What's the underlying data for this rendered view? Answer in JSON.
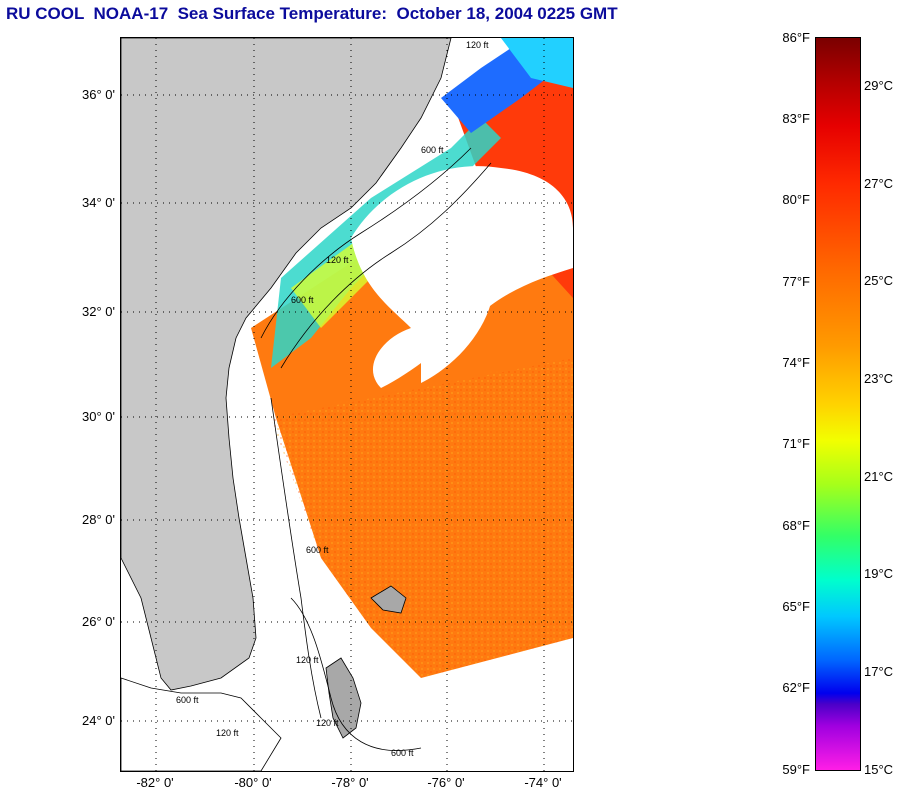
{
  "title": "RU COOL  NOAA-17  Sea Surface Temperature:  October 18, 2004 0225 GMT",
  "latitude_labels": [
    "36° 0'",
    "34° 0'",
    "32° 0'",
    "30° 0'",
    "28° 0'",
    "26° 0'",
    "24° 0'"
  ],
  "longitude_labels": [
    "-82° 0'",
    "-80° 0'",
    "-78° 0'",
    "-76° 0'",
    "-74° 0'"
  ],
  "colorbar": {
    "fahrenheit_labels": [
      "86°F",
      "83°F",
      "80°F",
      "77°F",
      "74°F",
      "71°F",
      "68°F",
      "65°F",
      "62°F",
      "59°F"
    ],
    "celsius_labels": [
      "29°C",
      "27°C",
      "25°C",
      "23°C",
      "21°C",
      "19°C",
      "17°C",
      "15°C"
    ],
    "colors": [
      "#7a0000",
      "#e60000",
      "#ff6a00",
      "#ffd200",
      "#f2ff00",
      "#33ff66",
      "#00ffcc",
      "#0066ff",
      "#0000ee",
      "#a000e0",
      "#ff1ee6"
    ]
  },
  "bathymetry_labels": [
    "120 ft",
    "600 ft",
    "120 ft",
    "600 ft",
    "600 ft",
    "120 ft",
    "600 ft",
    "120 ft",
    "600 ft",
    "120 ft"
  ],
  "colors": {
    "land": "#c8c8c8",
    "cloud_nodata": "#ffffff",
    "title": "#0b0b9c",
    "warm_sst": "#ff7a10"
  }
}
